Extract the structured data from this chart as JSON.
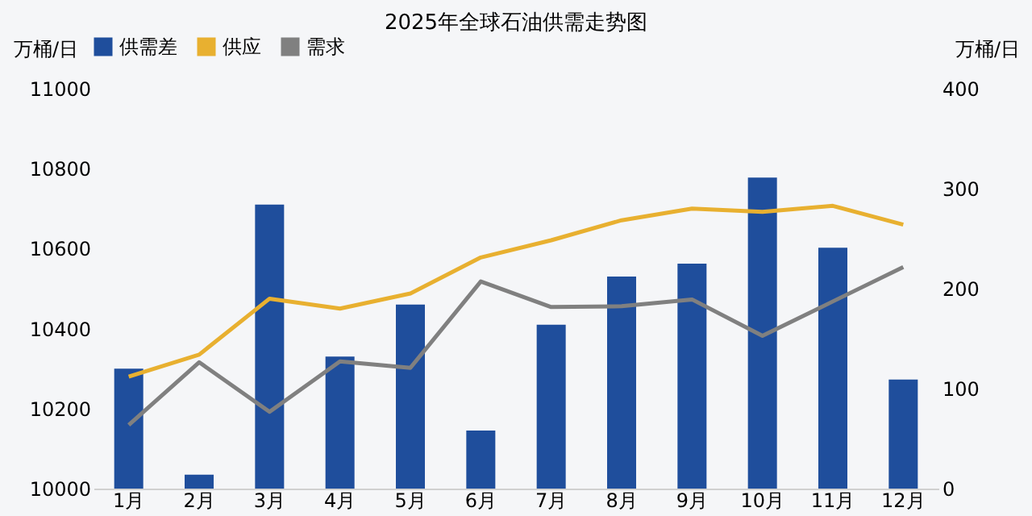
{
  "chart_data": {
    "type": "bar",
    "title": "2025年全球石油供需走势图",
    "categories": [
      "1月",
      "2月",
      "3月",
      "4月",
      "5月",
      "6月",
      "7月",
      "8月",
      "9月",
      "10月",
      "11月",
      "12月"
    ],
    "series": [
      {
        "name": "供需差",
        "axis": "y2",
        "color": "#1f4e9c",
        "values": [
          120,
          14,
          284,
          132,
          184,
          58,
          164,
          212,
          225,
          311,
          241,
          109
        ]
      },
      {
        "name": "供应",
        "type": "line",
        "color": "#e8b030",
        "values": [
          10280,
          10335,
          10475,
          10450,
          10488,
          10578,
          10621,
          10671,
          10700,
          10692,
          10707,
          10660
        ]
      },
      {
        "name": "需求",
        "type": "line",
        "color": "#808080",
        "values": [
          10159,
          10316,
          10192,
          10318,
          10302,
          10518,
          10454,
          10456,
          10473,
          10382,
          10468,
          10554
        ]
      }
    ],
    "ylabel": "万桶/日",
    "y2label": "万桶/日",
    "ylim": [
      10000,
      11000
    ],
    "yticks": [
      10000,
      10200,
      10400,
      10600,
      10800,
      11000
    ],
    "y2lim": [
      0,
      400
    ],
    "y2ticks": [
      0,
      100,
      200,
      300,
      400
    ],
    "legend": "top"
  }
}
